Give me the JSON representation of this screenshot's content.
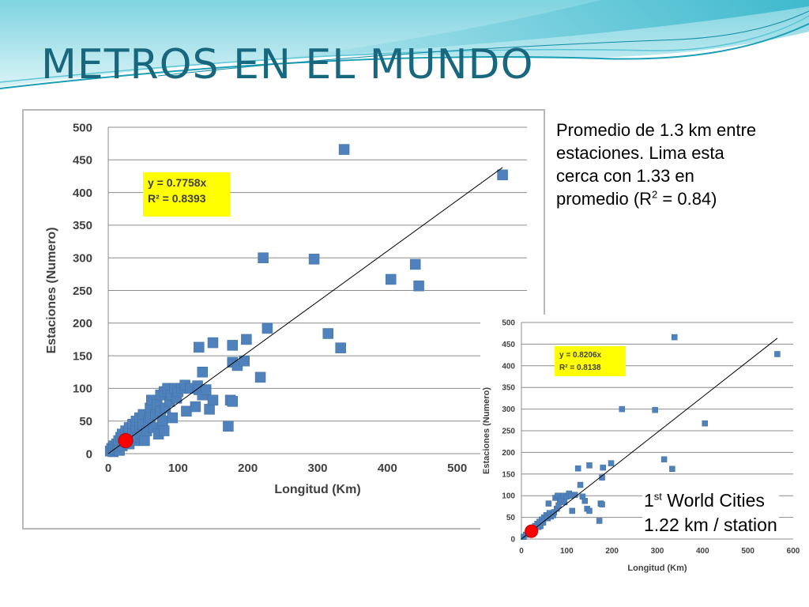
{
  "slide": {
    "title": "METROS EN EL MUNDO",
    "note": {
      "line1": "Promedio de 1.3 km entre",
      "line2": "estaciones. Lima esta",
      "line3": "cerca con 1.33 en",
      "line4_prefix": "promedio (R",
      "line4_sup": "2",
      "line4_suffix": " = 0.84)"
    },
    "cities": {
      "line1_num": "1",
      "line1_sup": "st",
      "line1_rest": " World Cities",
      "line2": "1.22 km / station"
    },
    "colors": {
      "title": "#17677e",
      "marker": "#4f81bd",
      "highlight": "#ff0000",
      "equation_box": "#ffff00"
    }
  },
  "chart_data": [
    {
      "type": "scatter",
      "title": "",
      "xlabel": "Longitud (Km)",
      "ylabel": "Estaciones (Numero)",
      "xlim": [
        0,
        600
      ],
      "ylim": [
        0,
        500
      ],
      "xticks": [
        0,
        100,
        200,
        300,
        400,
        500
      ],
      "yticks": [
        0,
        50,
        100,
        150,
        200,
        250,
        300,
        350,
        400,
        450,
        500
      ],
      "grid": "horizontal",
      "equation": [
        "y = 0.7758x",
        "R² = 0.8393"
      ],
      "trendline": {
        "slope": 0.7758,
        "x_end": 565
      },
      "series": [
        {
          "values": [
            [
              3,
              4
            ],
            [
              5,
              8
            ],
            [
              7,
              3
            ],
            [
              8,
              12
            ],
            [
              10,
              6
            ],
            [
              12,
              15
            ],
            [
              14,
              10
            ],
            [
              15,
              20
            ],
            [
              16,
              5
            ],
            [
              18,
              25
            ],
            [
              20,
              12
            ],
            [
              20,
              30
            ],
            [
              22,
              18
            ],
            [
              25,
              35
            ],
            [
              25,
              22
            ],
            [
              28,
              28
            ],
            [
              30,
              40
            ],
            [
              30,
              15
            ],
            [
              32,
              25
            ],
            [
              35,
              45
            ],
            [
              35,
              30
            ],
            [
              38,
              20
            ],
            [
              40,
              50
            ],
            [
              40,
              35
            ],
            [
              42,
              25
            ],
            [
              45,
              55
            ],
            [
              45,
              40
            ],
            [
              48,
              30
            ],
            [
              50,
              60
            ],
            [
              50,
              45
            ],
            [
              52,
              20
            ],
            [
              55,
              35
            ],
            [
              58,
              50
            ],
            [
              60,
              70
            ],
            [
              60,
              55
            ],
            [
              62,
              82
            ],
            [
              65,
              40
            ],
            [
              68,
              60
            ],
            [
              70,
              75
            ],
            [
              72,
              30
            ],
            [
              75,
              90
            ],
            [
              75,
              65
            ],
            [
              78,
              50
            ],
            [
              80,
              95
            ],
            [
              80,
              35
            ],
            [
              82,
              70
            ],
            [
              85,
              100
            ],
            [
              88,
              80
            ],
            [
              90,
              90
            ],
            [
              92,
              55
            ],
            [
              95,
              100
            ],
            [
              98,
              85
            ],
            [
              100,
              95
            ],
            [
              105,
              100
            ],
            [
              110,
              105
            ],
            [
              112,
              65
            ],
            [
              118,
              100
            ],
            [
              125,
              72
            ],
            [
              128,
              104
            ],
            [
              130,
              98
            ],
            [
              135,
              90
            ],
            [
              140,
              98
            ],
            [
              145,
              68
            ],
            [
              150,
              82
            ],
            [
              130,
              163
            ],
            [
              135,
              125
            ],
            [
              150,
              170
            ],
            [
              172,
              42
            ],
            [
              175,
              82
            ],
            [
              178,
              80
            ],
            [
              178,
              140
            ],
            [
              178,
              166
            ],
            [
              185,
              135
            ],
            [
              195,
              142
            ],
            [
              198,
              175
            ],
            [
              218,
              117
            ],
            [
              222,
              300
            ],
            [
              228,
              192
            ],
            [
              295,
              298
            ],
            [
              315,
              184
            ],
            [
              333,
              162
            ],
            [
              338,
              466
            ],
            [
              405,
              267
            ],
            [
              440,
              290
            ],
            [
              445,
              257
            ],
            [
              565,
              427
            ]
          ]
        }
      ],
      "highlight": [
        25,
        20
      ]
    },
    {
      "type": "scatter",
      "title": "",
      "xlabel": "Longitud (Km)",
      "ylabel": "Estaciones (Numero)",
      "xlim": [
        0,
        600
      ],
      "ylim": [
        0,
        500
      ],
      "xticks": [
        0,
        100,
        200,
        300,
        400,
        500,
        600
      ],
      "yticks": [
        0,
        50,
        100,
        150,
        200,
        250,
        300,
        350,
        400,
        450,
        500
      ],
      "grid": "horizontal",
      "equation": [
        "y = 0.8206x",
        "R² = 0.8138"
      ],
      "trendline": {
        "slope": 0.8206,
        "x_end": 565
      },
      "series": [
        {
          "values": [
            [
              5,
              5
            ],
            [
              10,
              10
            ],
            [
              15,
              12
            ],
            [
              18,
              20
            ],
            [
              20,
              15
            ],
            [
              25,
              25
            ],
            [
              28,
              18
            ],
            [
              30,
              30
            ],
            [
              35,
              35
            ],
            [
              38,
              28
            ],
            [
              40,
              40
            ],
            [
              42,
              30
            ],
            [
              45,
              45
            ],
            [
              48,
              38
            ],
            [
              50,
              50
            ],
            [
              55,
              55
            ],
            [
              58,
              48
            ],
            [
              60,
              82
            ],
            [
              62,
              60
            ],
            [
              65,
              52
            ],
            [
              70,
              55
            ],
            [
              72,
              62
            ],
            [
              75,
              95
            ],
            [
              78,
              70
            ],
            [
              80,
              100
            ],
            [
              82,
              78
            ],
            [
              85,
              88
            ],
            [
              88,
              92
            ],
            [
              92,
              100
            ],
            [
              95,
              85
            ],
            [
              100,
              98
            ],
            [
              105,
              105
            ],
            [
              110,
              100
            ],
            [
              112,
              65
            ],
            [
              118,
              102
            ],
            [
              125,
              163
            ],
            [
              130,
              125
            ],
            [
              135,
              98
            ],
            [
              140,
              88
            ],
            [
              145,
              70
            ],
            [
              150,
              170
            ],
            [
              150,
              65
            ],
            [
              172,
              42
            ],
            [
              175,
              82
            ],
            [
              178,
              80
            ],
            [
              178,
              142
            ],
            [
              180,
              165
            ],
            [
              198,
              175
            ],
            [
              222,
              300
            ],
            [
              295,
              298
            ],
            [
              315,
              184
            ],
            [
              333,
              162
            ],
            [
              338,
              466
            ],
            [
              405,
              267
            ],
            [
              565,
              427
            ]
          ]
        }
      ],
      "highlight": [
        22,
        18
      ]
    }
  ]
}
